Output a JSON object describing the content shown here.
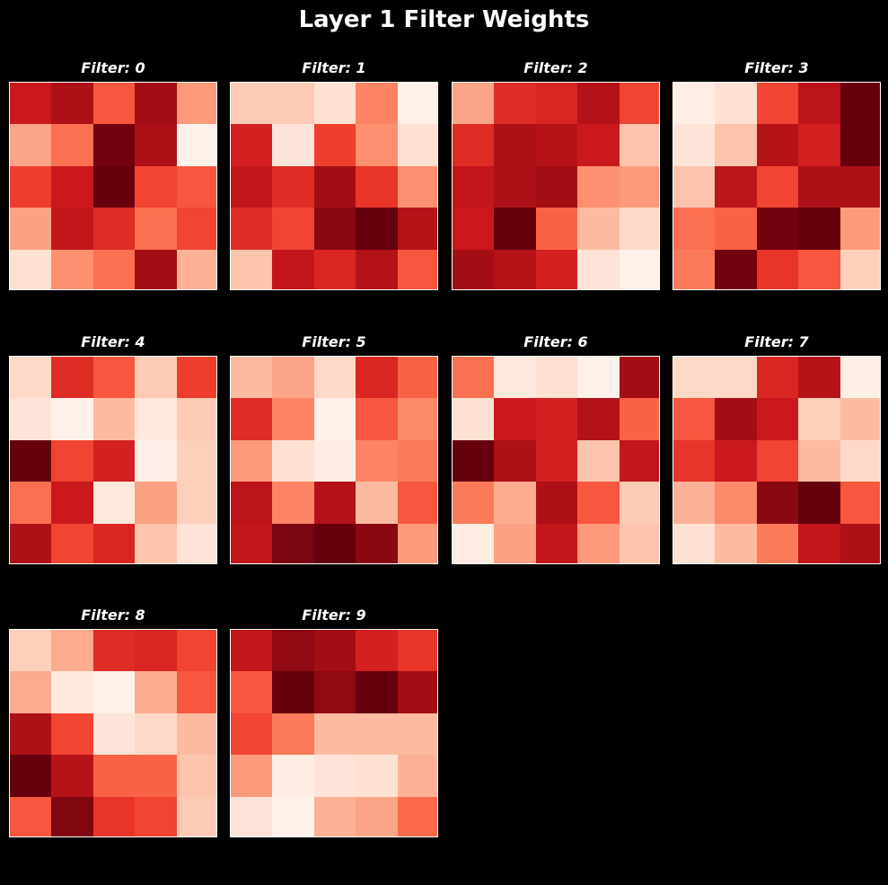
{
  "figure": {
    "title": "Layer 1 Filter Weights"
  },
  "chart_data": {
    "type": "heatmap",
    "colormap": "Reds",
    "background": "#000000",
    "grid": false,
    "layout": {
      "rows": 3,
      "cols": 4,
      "panels": 10
    },
    "value_range": [
      0,
      1
    ],
    "panels": [
      {
        "title": "Filter: 0",
        "values": [
          [
            0.75,
            0.85,
            0.55,
            0.88,
            0.35
          ],
          [
            0.32,
            0.48,
            0.98,
            0.85,
            0.02
          ],
          [
            0.62,
            0.75,
            1.0,
            0.6,
            0.55
          ],
          [
            0.33,
            0.78,
            0.68,
            0.48,
            0.6
          ],
          [
            0.12,
            0.38,
            0.48,
            0.88,
            0.28
          ]
        ]
      },
      {
        "title": "Filter: 1",
        "values": [
          [
            0.2,
            0.2,
            0.12,
            0.42,
            0.03
          ],
          [
            0.72,
            0.1,
            0.62,
            0.38,
            0.12
          ],
          [
            0.78,
            0.68,
            0.88,
            0.65,
            0.38
          ],
          [
            0.68,
            0.6,
            0.93,
            1.0,
            0.82
          ],
          [
            0.22,
            0.78,
            0.7,
            0.83,
            0.55
          ]
        ]
      },
      {
        "title": "Filter: 2",
        "values": [
          [
            0.32,
            0.68,
            0.7,
            0.83,
            0.6
          ],
          [
            0.68,
            0.85,
            0.82,
            0.75,
            0.22
          ],
          [
            0.78,
            0.85,
            0.88,
            0.38,
            0.35
          ],
          [
            0.75,
            1.0,
            0.52,
            0.25,
            0.15
          ],
          [
            0.88,
            0.82,
            0.72,
            0.1,
            0.03
          ]
        ]
      },
      {
        "title": "Filter: 3",
        "values": [
          [
            0.04,
            0.12,
            0.6,
            0.8,
            1.0
          ],
          [
            0.1,
            0.22,
            0.82,
            0.72,
            1.0
          ],
          [
            0.22,
            0.8,
            0.6,
            0.85,
            0.85
          ],
          [
            0.48,
            0.52,
            0.98,
            1.0,
            0.35
          ],
          [
            0.45,
            0.98,
            0.65,
            0.55,
            0.18
          ]
        ]
      },
      {
        "title": "Filter: 4",
        "values": [
          [
            0.15,
            0.68,
            0.55,
            0.2,
            0.62
          ],
          [
            0.1,
            0.03,
            0.25,
            0.08,
            0.2
          ],
          [
            1.0,
            0.6,
            0.72,
            0.04,
            0.18
          ],
          [
            0.48,
            0.75,
            0.08,
            0.33,
            0.18
          ],
          [
            0.85,
            0.6,
            0.7,
            0.22,
            0.1
          ]
        ]
      },
      {
        "title": "Filter: 5",
        "values": [
          [
            0.25,
            0.32,
            0.15,
            0.7,
            0.52
          ],
          [
            0.68,
            0.42,
            0.03,
            0.55,
            0.4
          ],
          [
            0.35,
            0.12,
            0.05,
            0.42,
            0.45
          ],
          [
            0.8,
            0.42,
            0.83,
            0.25,
            0.55
          ],
          [
            0.78,
            0.96,
            1.0,
            0.93,
            0.35
          ]
        ]
      },
      {
        "title": "Filter: 6",
        "values": [
          [
            0.48,
            0.08,
            0.12,
            0.03,
            0.88
          ],
          [
            0.12,
            0.75,
            0.72,
            0.83,
            0.52
          ],
          [
            1.0,
            0.85,
            0.72,
            0.22,
            0.78
          ],
          [
            0.45,
            0.3,
            0.85,
            0.55,
            0.2
          ],
          [
            0.05,
            0.33,
            0.78,
            0.35,
            0.22
          ]
        ]
      },
      {
        "title": "Filter: 7",
        "values": [
          [
            0.15,
            0.15,
            0.7,
            0.82,
            0.04
          ],
          [
            0.55,
            0.88,
            0.75,
            0.18,
            0.25
          ],
          [
            0.65,
            0.75,
            0.6,
            0.25,
            0.15
          ],
          [
            0.28,
            0.4,
            0.93,
            1.0,
            0.55
          ],
          [
            0.12,
            0.25,
            0.45,
            0.78,
            0.85
          ]
        ]
      },
      {
        "title": "Filter: 8",
        "values": [
          [
            0.18,
            0.3,
            0.68,
            0.7,
            0.6
          ],
          [
            0.3,
            0.08,
            0.03,
            0.3,
            0.55
          ],
          [
            0.85,
            0.6,
            0.1,
            0.15,
            0.25
          ],
          [
            1.0,
            0.82,
            0.52,
            0.52,
            0.22
          ],
          [
            0.55,
            0.95,
            0.65,
            0.6,
            0.2
          ]
        ]
      },
      {
        "title": "Filter: 9",
        "values": [
          [
            0.78,
            0.92,
            0.88,
            0.72,
            0.65
          ],
          [
            0.55,
            1.0,
            0.92,
            1.0,
            0.88
          ],
          [
            0.6,
            0.45,
            0.25,
            0.25,
            0.25
          ],
          [
            0.35,
            0.05,
            0.1,
            0.12,
            0.28
          ],
          [
            0.1,
            0.03,
            0.28,
            0.32,
            0.5
          ]
        ]
      }
    ]
  }
}
